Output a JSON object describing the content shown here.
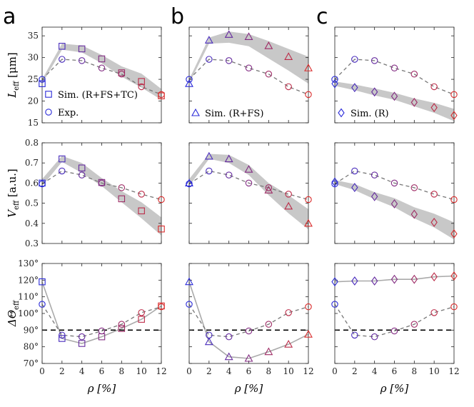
{
  "figure": {
    "panel_letters": [
      "a",
      "b",
      "c"
    ],
    "xlabel": "ρ [%]",
    "row_ylabels": [
      {
        "sym": "L",
        "sub": "eff",
        "unit": " [μm]"
      },
      {
        "sym": "V",
        "sub": "eff",
        "unit": " [a.u.]"
      },
      {
        "sym": "ΔΘ",
        "sub": "eff",
        "unit": ""
      }
    ],
    "legend": {
      "exp_label": "Exp.",
      "sim_labels": [
        "Sim. (R+FS+TC)",
        "Sim. (R+FS)",
        "Sim. (R)"
      ],
      "sim_markers": [
        "square",
        "triangle",
        "diamond"
      ]
    },
    "colors": {
      "start": "#2b2bd9",
      "end": "#d92b2b",
      "band": "#c8c8c8",
      "exp_line": "#777777",
      "ref_line": "#000000"
    }
  },
  "chart_data": {
    "type": "scatter",
    "x": [
      0,
      2,
      4,
      6,
      8,
      10,
      12
    ],
    "xlim": [
      0,
      12
    ],
    "xticks": [
      0,
      2,
      4,
      6,
      8,
      10,
      12
    ],
    "rows": [
      {
        "quantity": "L_eff",
        "ylim": [
          15,
          37
        ],
        "yticks": [
          15,
          20,
          25,
          30,
          35
        ],
        "ytick_labels": [
          "15",
          "20",
          "25",
          "30",
          "35"
        ],
        "exp": [
          25.0,
          29.6,
          29.3,
          27.6,
          26.2,
          23.3,
          21.5
        ],
        "sim": [
          [
            24.0,
            32.6,
            32.0,
            29.7,
            26.5,
            24.5,
            21.2
          ],
          [
            24.0,
            34.0,
            35.3,
            34.8,
            32.7,
            30.2,
            27.6
          ],
          [
            24.0,
            23.1,
            22.1,
            21.1,
            19.7,
            18.5,
            16.7
          ]
        ],
        "band_upper": [
          [
            25.0,
            33.2,
            32.8,
            30.6,
            28.0,
            26.3,
            22.8
          ],
          [
            25.0,
            34.6,
            36.0,
            35.4,
            33.8,
            32.0,
            30.2
          ],
          [
            24.5,
            23.8,
            22.9,
            21.9,
            20.6,
            19.6,
            18.2
          ]
        ],
        "band_lower": [
          [
            24.0,
            31.8,
            31.2,
            28.7,
            25.6,
            23.1,
            20.3
          ],
          [
            24.0,
            33.2,
            33.4,
            32.6,
            29.8,
            27.0,
            24.0
          ],
          [
            23.5,
            22.5,
            21.3,
            20.3,
            18.8,
            17.3,
            15.4
          ]
        ],
        "reference": null
      },
      {
        "quantity": "V_eff",
        "ylim": [
          0.3,
          0.8
        ],
        "yticks": [
          0.3,
          0.4,
          0.5,
          0.6,
          0.7,
          0.8
        ],
        "ytick_labels": [
          "0.3",
          "0.4",
          "0.5",
          "0.6",
          "0.7",
          "0.8"
        ],
        "exp": [
          0.596,
          0.66,
          0.64,
          0.6,
          0.577,
          0.545,
          0.518
        ],
        "sim": [
          [
            0.6,
            0.72,
            0.675,
            0.603,
            0.522,
            0.462,
            0.372
          ],
          [
            0.6,
            0.733,
            0.72,
            0.668,
            0.565,
            0.485,
            0.4
          ],
          [
            0.605,
            0.578,
            0.533,
            0.497,
            0.445,
            0.405,
            0.348
          ]
        ],
        "band_upper": [
          [
            0.62,
            0.735,
            0.7,
            0.625,
            0.56,
            0.505,
            0.43
          ],
          [
            0.62,
            0.745,
            0.74,
            0.69,
            0.6,
            0.54,
            0.47
          ],
          [
            0.615,
            0.595,
            0.555,
            0.525,
            0.48,
            0.448,
            0.405
          ]
        ],
        "band_lower": [
          [
            0.585,
            0.705,
            0.65,
            0.585,
            0.505,
            0.425,
            0.34
          ],
          [
            0.585,
            0.72,
            0.7,
            0.64,
            0.54,
            0.45,
            0.37
          ],
          [
            0.595,
            0.565,
            0.52,
            0.48,
            0.425,
            0.38,
            0.32
          ]
        ],
        "reference": null
      },
      {
        "quantity": "ΔΘ_eff",
        "ylim": [
          70,
          130
        ],
        "yticks": [
          70,
          80,
          90,
          100,
          110,
          120,
          130
        ],
        "ytick_labels": [
          "70°",
          "80°",
          "90°",
          "100°",
          "110°",
          "120°",
          "130°"
        ],
        "exp": [
          105.5,
          87.0,
          86.0,
          89.5,
          93.5,
          100.5,
          104.0
        ],
        "sim": [
          [
            119.0,
            85.0,
            82.0,
            86.0,
            91.0,
            96.5,
            104.5
          ],
          [
            119.0,
            83.0,
            74.0,
            73.0,
            77.0,
            81.5,
            87.5
          ],
          [
            119.0,
            119.5,
            119.5,
            120.5,
            120.5,
            122.0,
            122.5
          ]
        ],
        "band_upper": null,
        "band_lower": null,
        "reference": 90
      }
    ]
  }
}
